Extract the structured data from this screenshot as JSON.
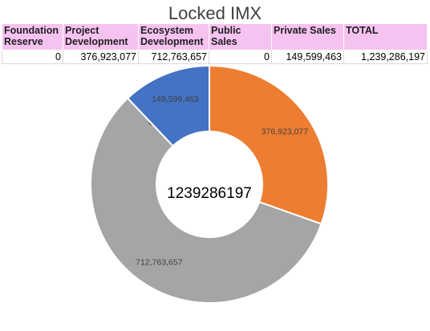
{
  "title": "Locked IMX",
  "table": {
    "headers": [
      "Foundation Reserve",
      "Project Development",
      "Ecosystem Development",
      "Public Sales",
      "Private Sales",
      "TOTAL"
    ],
    "values": [
      "0",
      "376,923,077",
      "712,763,657",
      "0",
      "149,599,463",
      "1,239,286,197"
    ]
  },
  "colors": {
    "orange": "#ed7d31",
    "gray": "#a5a5a5",
    "blue": "#4472c4",
    "header_bg": "#f6c2f0"
  },
  "chart_data": {
    "type": "pie",
    "variant": "donut",
    "title": "Locked IMX",
    "center_label": "1239286197",
    "slices": [
      {
        "category": "Foundation Reserve",
        "value": 0,
        "label": "0"
      },
      {
        "category": "Project Development",
        "value": 376923077,
        "label": "376,923,077",
        "color": "#ed7d31"
      },
      {
        "category": "Ecosystem Development",
        "value": 712763657,
        "label": "712,763,657",
        "color": "#a5a5a5"
      },
      {
        "category": "Public Sales",
        "value": 0,
        "label": "0"
      },
      {
        "category": "Private Sales",
        "value": 149599463,
        "label": "149,599,463",
        "color": "#4472c4"
      }
    ]
  }
}
